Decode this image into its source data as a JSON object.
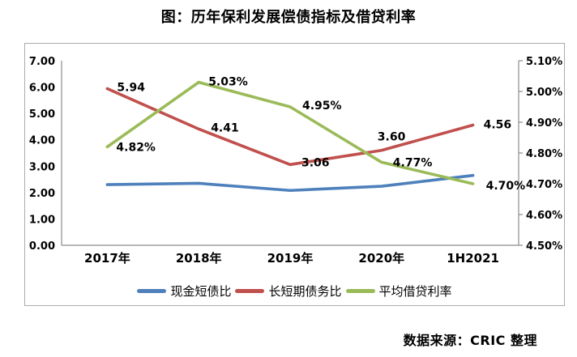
{
  "page": {
    "title": "图：历年保利发展偿债指标及借贷利率",
    "source": "数据来源：CRIC 整理"
  },
  "colors": {
    "axis_line": "#8c8c8c",
    "box_border": "#ababab",
    "text": "#000000",
    "series_blue": "#4e81bc",
    "series_red": "#c0504d",
    "series_green": "#9bbb59"
  },
  "chart_data": {
    "type": "line",
    "title": "图：历年保利发展偿债指标及借贷利率",
    "categories": [
      "2017年",
      "2018年",
      "2019年",
      "2020年",
      "1H2021"
    ],
    "series": [
      {
        "name": "现金短债比",
        "axis": "left",
        "color": "#4e81bc",
        "values": [
          2.3,
          2.35,
          2.08,
          2.24,
          2.65
        ],
        "point_labels": [
          "",
          "",
          "",
          "",
          ""
        ],
        "label_dx": [
          0,
          0,
          0,
          0,
          0
        ],
        "label_dy": [
          0,
          0,
          0,
          0,
          0
        ]
      },
      {
        "name": "长短期债务比",
        "axis": "left",
        "color": "#c0504d",
        "values": [
          5.94,
          4.41,
          3.06,
          3.6,
          4.56
        ],
        "point_labels": [
          "5.94",
          "4.41",
          "3.06",
          "3.60",
          "4.56"
        ],
        "label_dx": [
          12,
          15,
          14,
          -5,
          13
        ],
        "label_dy": [
          3,
          3,
          2,
          -12,
          4
        ]
      },
      {
        "name": "平均借贷利率",
        "axis": "right",
        "color": "#9bbb59",
        "values": [
          4.82,
          5.03,
          4.95,
          4.77,
          4.7
        ],
        "point_labels": [
          "4.82%",
          "5.03%",
          "4.95%",
          "4.77%",
          "4.70%"
        ],
        "label_dx": [
          11,
          12,
          15,
          14,
          16
        ],
        "label_dy": [
          5,
          4,
          3,
          5,
          7
        ]
      }
    ],
    "left_axis": {
      "min": 0,
      "max": 7,
      "step": 1,
      "tick_labels": [
        "0.00",
        "1.00",
        "2.00",
        "3.00",
        "4.00",
        "5.00",
        "6.00",
        "7.00"
      ]
    },
    "right_axis": {
      "min": 4.5,
      "max": 5.1,
      "step": 0.1,
      "tick_labels": [
        "4.50%",
        "4.60%",
        "4.70%",
        "4.80%",
        "4.90%",
        "5.00%",
        "5.10%"
      ]
    },
    "legend_position": "bottom",
    "grid": false
  }
}
